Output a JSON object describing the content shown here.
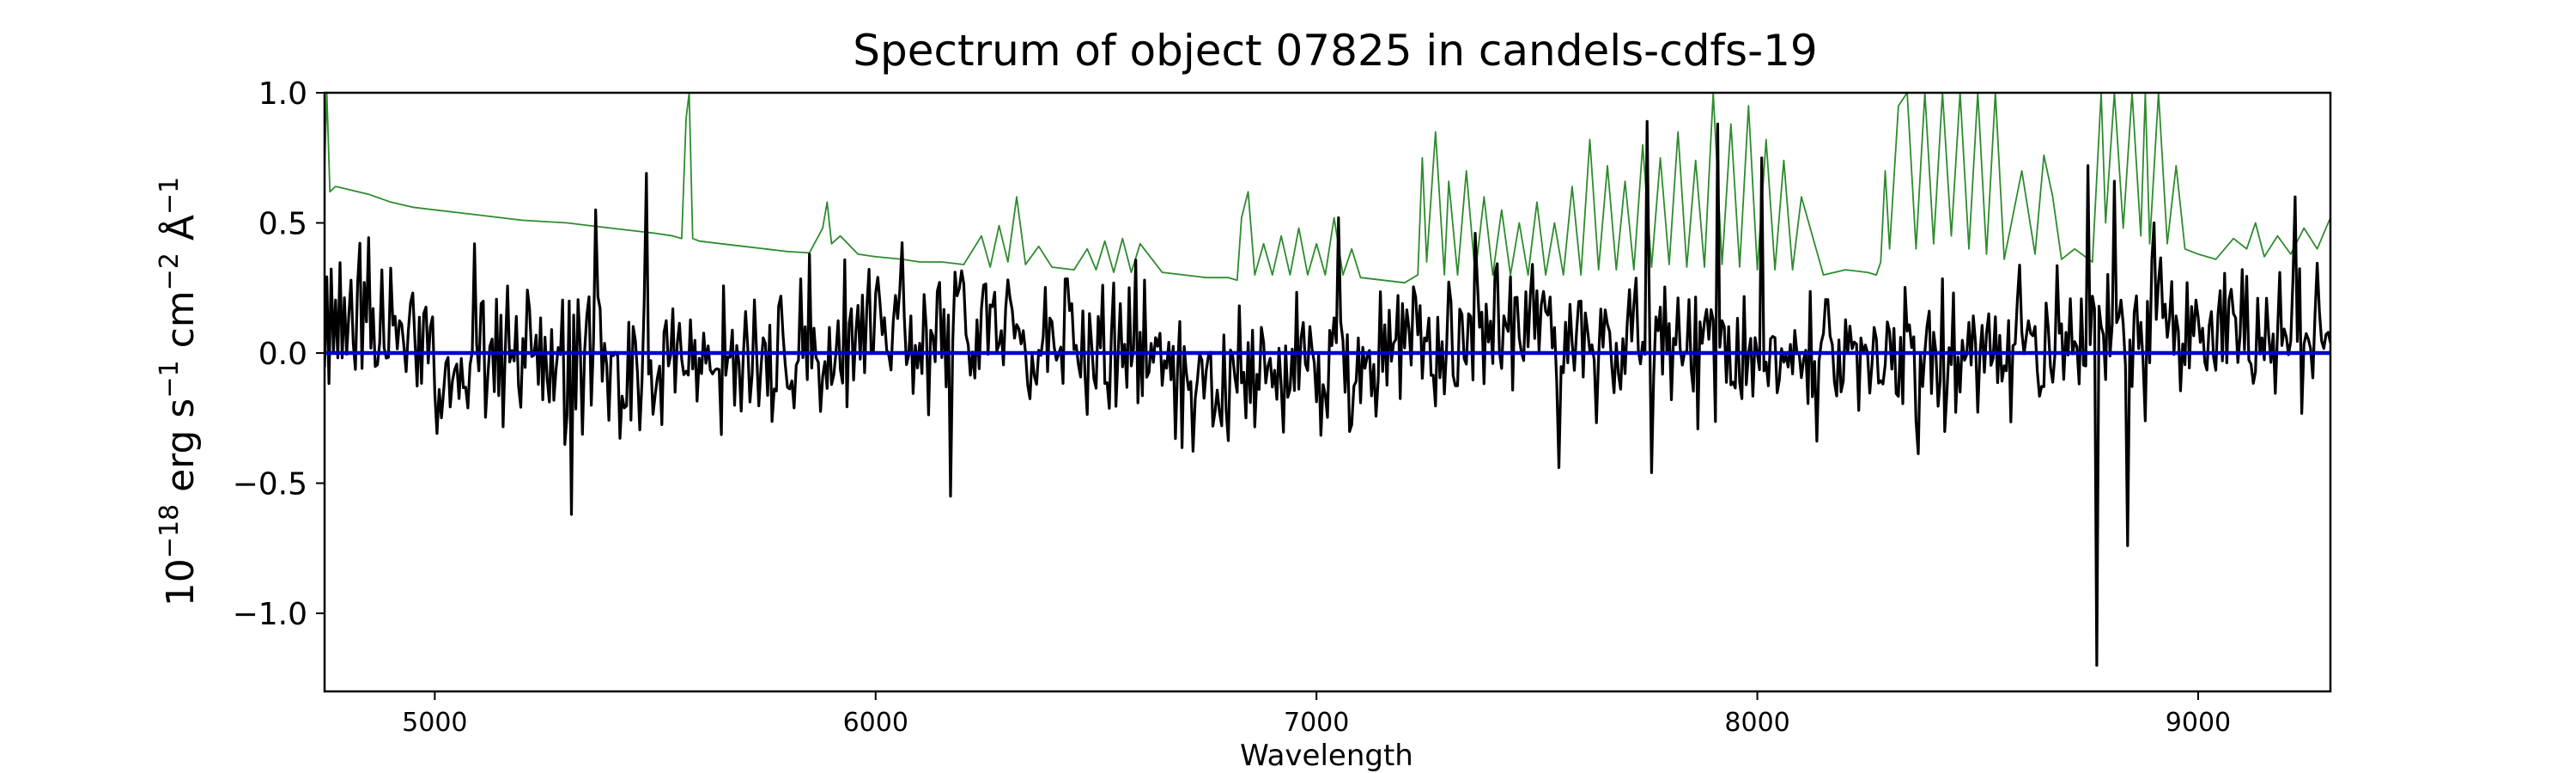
{
  "chart_data": {
    "type": "line",
    "title": "Spectrum of object 07825 in candels-cdfs-19",
    "xlabel": "Wavelength",
    "ylabel": {
      "base": "10",
      "exp1": "−18",
      "t1": " erg s",
      "exp2": "−1",
      "t2": " cm",
      "exp3": "−2",
      "t3": " Å",
      "exp4": "−1"
    },
    "xlim": [
      4750,
      9300
    ],
    "ylim": [
      -1.3,
      1.0
    ],
    "xticks": [
      5000,
      6000,
      7000,
      8000,
      9000
    ],
    "xtick_labels": [
      "5000",
      "6000",
      "7000",
      "8000",
      "9000"
    ],
    "yticks": [
      1.0,
      0.5,
      0.0,
      -0.5,
      -1.0
    ],
    "ytick_labels": [
      "1.0",
      "0.5",
      "0.0",
      "−0.5",
      "−1.0"
    ],
    "grid": false,
    "series": [
      {
        "role": "error",
        "color": "#2e8b2e",
        "x": [
          4750,
          4755,
          4762,
          4775,
          4800,
          4850,
          4900,
          4950,
          5000,
          5050,
          5100,
          5150,
          5200,
          5250,
          5300,
          5350,
          5400,
          5450,
          5500,
          5540,
          5560,
          5570,
          5577,
          5585,
          5600,
          5650,
          5700,
          5750,
          5800,
          5850,
          5880,
          5890,
          5900,
          5920,
          5960,
          6000,
          6060,
          6100,
          6150,
          6200,
          6240,
          6260,
          6280,
          6300,
          6320,
          6340,
          6370,
          6400,
          6450,
          6480,
          6500,
          6520,
          6540,
          6560,
          6580,
          6600,
          6650,
          6700,
          6750,
          6800,
          6820,
          6830,
          6845,
          6860,
          6880,
          6900,
          6920,
          6940,
          6960,
          6980,
          7000,
          7020,
          7040,
          7060,
          7080,
          7100,
          7150,
          7200,
          7230,
          7240,
          7250,
          7270,
          7290,
          7300,
          7320,
          7340,
          7360,
          7380,
          7400,
          7420,
          7440,
          7460,
          7480,
          7500,
          7520,
          7540,
          7560,
          7580,
          7600,
          7620,
          7640,
          7660,
          7680,
          7700,
          7720,
          7740,
          7760,
          7780,
          7800,
          7820,
          7840,
          7860,
          7880,
          7900,
          7920,
          7940,
          7960,
          7980,
          8000,
          8020,
          8040,
          8060,
          8080,
          8100,
          8150,
          8200,
          8250,
          8270,
          8280,
          8290,
          8300,
          8320,
          8340,
          8360,
          8380,
          8400,
          8420,
          8440,
          8460,
          8480,
          8500,
          8520,
          8540,
          8560,
          8600,
          8630,
          8650,
          8670,
          8690,
          8720,
          8760,
          8780,
          8790,
          8810,
          8830,
          8850,
          8870,
          8880,
          8890,
          8910,
          8930,
          8950,
          8970,
          9000,
          9040,
          9080,
          9110,
          9130,
          9150,
          9180,
          9210,
          9240,
          9270,
          9300
        ],
        "y": [
          0.7,
          1.0,
          0.62,
          0.64,
          0.63,
          0.61,
          0.58,
          0.56,
          0.55,
          0.54,
          0.53,
          0.52,
          0.51,
          0.505,
          0.5,
          0.49,
          0.48,
          0.47,
          0.46,
          0.45,
          0.44,
          0.9,
          1.0,
          0.44,
          0.43,
          0.42,
          0.41,
          0.4,
          0.39,
          0.385,
          0.48,
          0.58,
          0.42,
          0.45,
          0.38,
          0.37,
          0.36,
          0.35,
          0.35,
          0.34,
          0.45,
          0.33,
          0.49,
          0.35,
          0.6,
          0.34,
          0.41,
          0.33,
          0.32,
          0.4,
          0.32,
          0.43,
          0.31,
          0.44,
          0.31,
          0.42,
          0.31,
          0.3,
          0.29,
          0.29,
          0.28,
          0.52,
          0.62,
          0.3,
          0.42,
          0.3,
          0.45,
          0.3,
          0.48,
          0.3,
          0.42,
          0.3,
          0.52,
          0.3,
          0.4,
          0.29,
          0.28,
          0.27,
          0.3,
          0.75,
          0.35,
          0.85,
          0.3,
          0.66,
          0.3,
          0.7,
          0.3,
          0.6,
          0.3,
          0.55,
          0.3,
          0.5,
          0.3,
          0.58,
          0.3,
          0.5,
          0.3,
          0.64,
          0.3,
          0.82,
          0.32,
          0.72,
          0.32,
          0.66,
          0.32,
          0.8,
          0.33,
          0.75,
          0.34,
          0.85,
          0.33,
          0.74,
          0.33,
          1.0,
          0.34,
          0.88,
          0.33,
          0.95,
          0.32,
          0.82,
          0.32,
          0.74,
          0.32,
          0.6,
          0.3,
          0.32,
          0.31,
          0.3,
          0.35,
          0.7,
          0.4,
          0.95,
          1.0,
          0.4,
          1.0,
          0.42,
          1.0,
          0.45,
          1.0,
          0.4,
          1.0,
          0.38,
          1.0,
          0.36,
          0.7,
          0.38,
          0.76,
          0.6,
          0.36,
          0.4,
          0.35,
          1.0,
          0.5,
          1.0,
          0.48,
          1.0,
          0.45,
          1.0,
          0.42,
          1.0,
          0.42,
          0.72,
          0.4,
          0.38,
          0.36,
          0.44,
          0.4,
          0.5,
          0.37,
          0.45,
          0.38,
          0.48,
          0.4,
          0.52
        ]
      },
      {
        "role": "flux",
        "color": "#000000",
        "x_start": 4750,
        "x_step": 5,
        "seed": 7825,
        "spikes": [
          [
            5090,
            0.42
          ],
          [
            5310,
            -0.62
          ],
          [
            5365,
            0.55
          ],
          [
            5480,
            0.69
          ],
          [
            5850,
            0.38
          ],
          [
            6170,
            -0.55
          ],
          [
            7050,
            0.52
          ],
          [
            7360,
            0.46
          ],
          [
            7550,
            -0.44
          ],
          [
            7750,
            0.89
          ],
          [
            7760,
            -0.46
          ],
          [
            7910,
            0.88
          ],
          [
            8010,
            0.75
          ],
          [
            8750,
            0.72
          ],
          [
            8770,
            -1.2
          ],
          [
            8810,
            0.66
          ],
          [
            8840,
            -0.74
          ],
          [
            8900,
            0.5
          ],
          [
            9220,
            0.6
          ]
        ]
      },
      {
        "role": "zero",
        "color": "#0000cc",
        "x": [
          4750,
          9300
        ],
        "y": [
          0.0,
          0.0
        ]
      }
    ]
  }
}
